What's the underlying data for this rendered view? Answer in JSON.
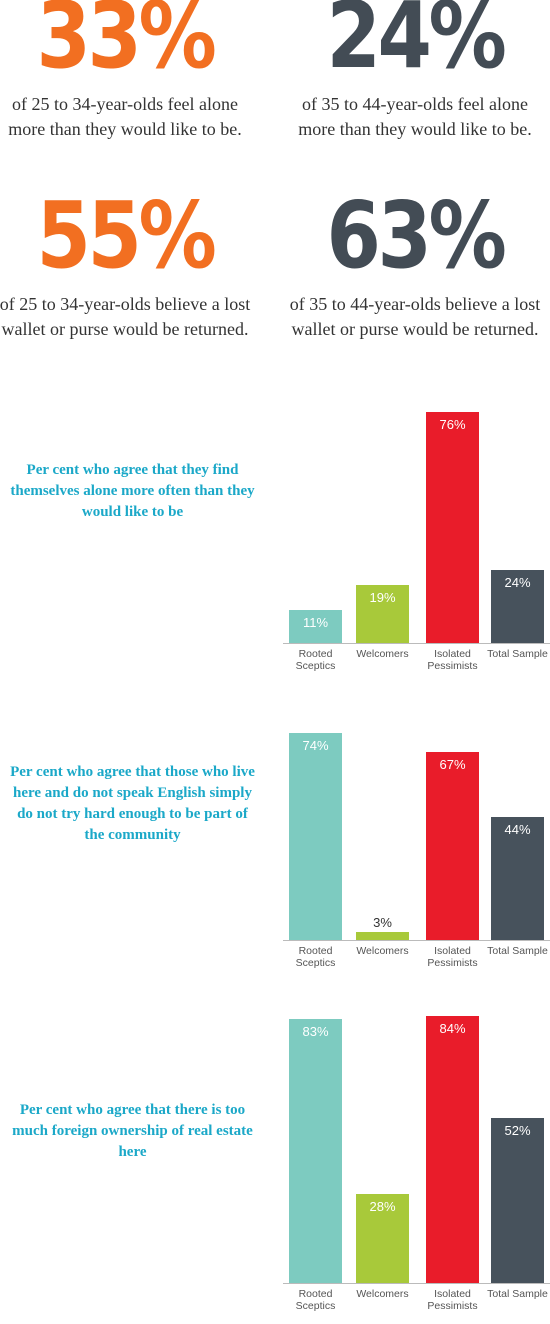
{
  "stats": [
    {
      "number": "33%",
      "color": "#f26f21",
      "lines": [
        "of 25 to 34-year-olds feel alone",
        "more than they would like to be."
      ]
    },
    {
      "number": "24%",
      "color": "#434c55",
      "lines": [
        "of 35 to 44-year-olds feel alone",
        "more than they would like to be."
      ]
    },
    {
      "number": "55%",
      "color": "#f26f21",
      "lines": [
        "of 25 to 34-year-olds believe a lost",
        "wallet or purse would be returned."
      ]
    },
    {
      "number": "63%",
      "color": "#434c55",
      "lines": [
        "of 35 to 44-year-olds believe a lost",
        "wallet or purse would be returned."
      ]
    }
  ],
  "chart_data": [
    {
      "type": "bar",
      "title": "Per cent who agree that they find themselves alone more often than they would like to be",
      "categories": [
        "Rooted Sceptics",
        "Welcomers",
        "Isolated Pessimists",
        "Total Sample"
      ],
      "values": [
        11,
        19,
        76,
        24
      ],
      "value_labels": [
        "11%",
        "19%",
        "76%",
        "24%"
      ],
      "colors": [
        "#7dcbc0",
        "#a8c93a",
        "#e91c2a",
        "#47525c"
      ],
      "ylim": [
        0,
        80
      ]
    },
    {
      "type": "bar",
      "title": "Per cent who agree that those who live here and do not speak English simply do not try hard enough to be part of the community",
      "categories": [
        "Rooted Sceptics",
        "Welcomers",
        "Isolated Pessimists",
        "Total Sample"
      ],
      "values": [
        74,
        3,
        67,
        44
      ],
      "value_labels": [
        "74%",
        "3%",
        "67%",
        "44%"
      ],
      "colors": [
        "#7dcbc0",
        "#a8c93a",
        "#e91c2a",
        "#47525c"
      ],
      "ylim": [
        0,
        80
      ]
    },
    {
      "type": "bar",
      "title": "Per cent who agree that there is too much foreign ownership of real estate here",
      "categories": [
        "Rooted Sceptics",
        "Welcomers",
        "Isolated Pessimists",
        "Total Sample"
      ],
      "values": [
        83,
        28,
        84,
        52
      ],
      "value_labels": [
        "83%",
        "28%",
        "84%",
        "52%"
      ],
      "colors": [
        "#7dcbc0",
        "#a8c93a",
        "#e91c2a",
        "#47525c"
      ],
      "ylim": [
        0,
        90
      ]
    }
  ]
}
